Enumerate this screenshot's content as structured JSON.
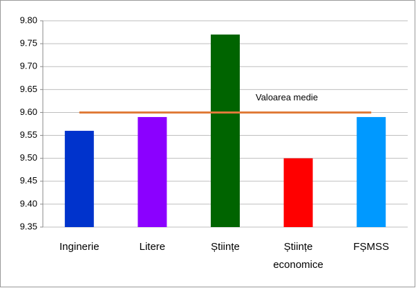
{
  "chart_data": {
    "type": "bar",
    "categories": [
      "Inginerie",
      "Litere",
      "Științe",
      "Științe economice",
      "FȘMSS"
    ],
    "values": [
      9.56,
      9.59,
      9.77,
      9.5,
      9.59
    ],
    "colors": [
      "#0033cc",
      "#8b00ff",
      "#006400",
      "#ff0000",
      "#0099ff"
    ],
    "ylim": [
      9.35,
      9.8
    ],
    "yticks": [
      9.35,
      {
        "value": 9.4,
        "label": "9.40"
      },
      9.45,
      {
        "value": 9.5,
        "label": "9.50"
      },
      9.55,
      {
        "value": 9.6,
        "label": "9.60"
      },
      9.65,
      {
        "value": 9.7,
        "label": "9.70"
      },
      9.75,
      {
        "value": 9.8,
        "label": "9.80"
      }
    ],
    "grid": true,
    "reference_line": {
      "value": 9.6,
      "label": "Valoarea medie",
      "color": "#e07b39"
    }
  }
}
